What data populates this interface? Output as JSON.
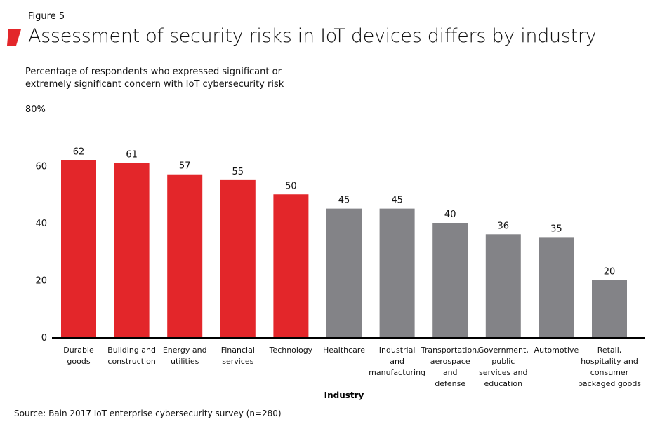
{
  "figure_label": "Figure 5",
  "title": "Assessment of security risks in IoT devices differs by industry",
  "subtitle": "Percentage of respondents who expressed significant or extremely significant concern with IoT cybersecurity risk",
  "source": "Source: Bain 2017 IoT enterprise cybersecurity survey (n=280)",
  "colors": {
    "highlight": "#e3262a",
    "other": "#838387",
    "accent_mark": "#e3262a"
  },
  "chart_data": {
    "type": "bar",
    "title": "Assessment of security risks in IoT devices differs by industry",
    "xlabel": "Industry",
    "ylabel": "Percentage of respondents who expressed significant or extremely significant concern with IoT cybersecurity risk",
    "ylim": [
      0,
      80
    ],
    "yticks": [
      "0",
      "20",
      "40",
      "60",
      "80%"
    ],
    "ytick_values": [
      0,
      20,
      40,
      60,
      80
    ],
    "grid": false,
    "categories": [
      [
        "Durable",
        "goods"
      ],
      [
        "Building and",
        "construction"
      ],
      [
        "Energy and",
        "utilities"
      ],
      [
        "Financial",
        "services"
      ],
      [
        "Technology"
      ],
      [
        "Healthcare"
      ],
      [
        "Industrial",
        "and",
        "manufacturing"
      ],
      [
        "Transportation,",
        "aerospace",
        "and",
        "defense"
      ],
      [
        "Government,",
        "public",
        "services and",
        "education"
      ],
      [
        "Automotive"
      ],
      [
        "Retail,",
        "hospitality and",
        "consumer",
        "packaged goods"
      ]
    ],
    "values": [
      62,
      61,
      57,
      55,
      50,
      45,
      45,
      40,
      36,
      35,
      20
    ],
    "highlighted": [
      true,
      true,
      true,
      true,
      true,
      false,
      false,
      false,
      false,
      false,
      false
    ]
  }
}
